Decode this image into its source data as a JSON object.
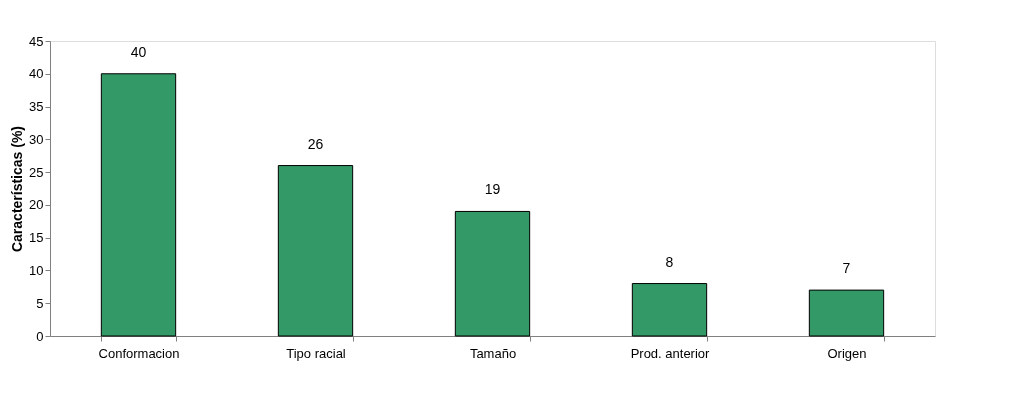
{
  "chart_data": {
    "type": "bar",
    "ylabel": "Características (%)",
    "categories": [
      "Conformacion",
      "Tipo racial",
      "Tamaño",
      "Prod. anterior",
      "Origen"
    ],
    "values": [
      40,
      26,
      19,
      8,
      7
    ],
    "color": "#339966",
    "ylim": [
      0,
      45
    ],
    "yticks": [
      0,
      5,
      10,
      15,
      20,
      25,
      30,
      35,
      40,
      45
    ],
    "grid": false,
    "data_labels": true
  }
}
